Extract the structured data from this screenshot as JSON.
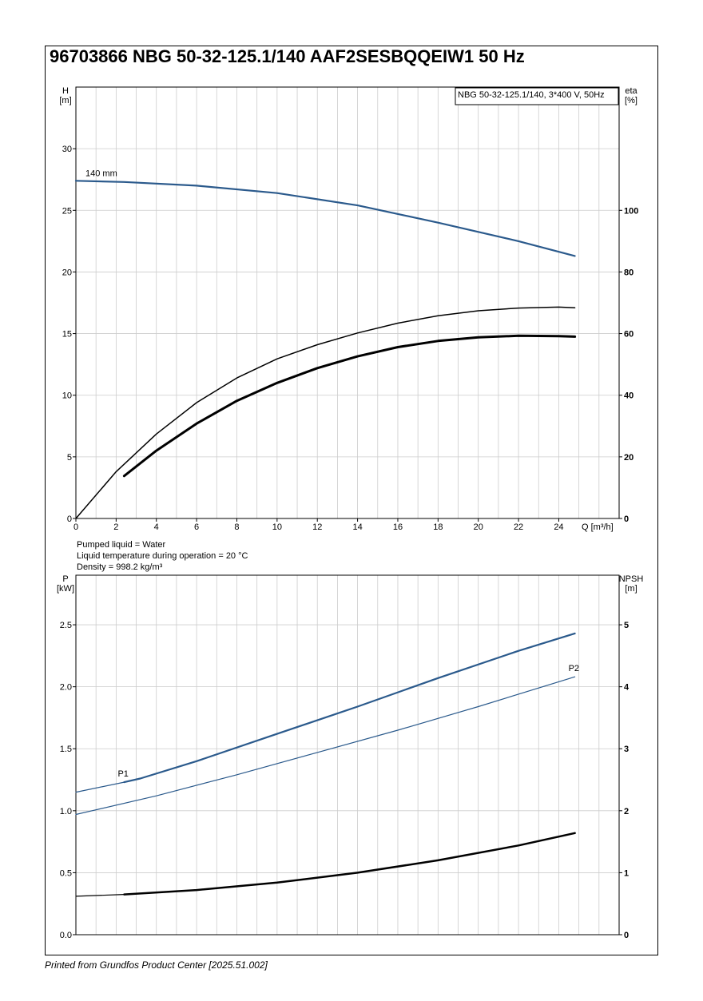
{
  "title": "96703866 NBG 50-32-125.1/140 AAF2SESBQQEIW1 50 Hz",
  "footer": "Printed from Grundfos Product Center [2025.51.002]",
  "info": [
    "Pumped liquid = Water",
    "Liquid temperature during operation = 20 °C",
    "Density = 998.2 kg/m³"
  ],
  "colors": {
    "blue": "#2b5a8c",
    "black": "#000000",
    "grid": "#cccccc"
  },
  "chart_data": [
    {
      "type": "line",
      "legend_box": "NBG 50-32-125.1/140, 3*400 V, 50Hz",
      "legend_placement": "top-right",
      "grid": true,
      "xlabel": "Q [m³/h]",
      "ylabel_left": [
        "H",
        "[m]"
      ],
      "ylabel_right": [
        "eta",
        "[%]"
      ],
      "xlim": [
        0,
        27
      ],
      "ylim_left": [
        0,
        35
      ],
      "ylim_right": [
        0,
        140
      ],
      "x_ticks": [
        "0",
        "2",
        "4",
        "6",
        "8",
        "10",
        "12",
        "14",
        "16",
        "18",
        "20",
        "22",
        "24"
      ],
      "y_left_ticks": [
        "0",
        "5",
        "10",
        "15",
        "20",
        "25",
        "30"
      ],
      "y_right_ticks": [
        "0",
        "20",
        "40",
        "60",
        "80",
        "100"
      ],
      "series": [
        {
          "name": "140 mm",
          "axis": "left",
          "color": "#2b5a8c",
          "width": 2.2,
          "x": [
            0,
            2.4,
            6,
            10,
            14,
            18,
            22,
            24.8
          ],
          "y": [
            27.4,
            27.3,
            27.0,
            26.4,
            25.4,
            24.0,
            22.5,
            21.3
          ]
        },
        {
          "axis": "right",
          "color": "#000000",
          "width": 1.5,
          "x": [
            0,
            2,
            4,
            6,
            8,
            10,
            12,
            14,
            16,
            18,
            20,
            22,
            24,
            24.8
          ],
          "y": [
            0,
            15.2,
            27.4,
            37.6,
            45.6,
            51.8,
            56.4,
            60.2,
            63.4,
            65.8,
            67.4,
            68.3,
            68.6,
            68.4
          ]
        },
        {
          "axis": "right",
          "color": "#000000",
          "width": 3,
          "x": [
            2.4,
            4,
            6,
            8,
            10,
            12,
            14,
            16,
            18,
            20,
            22,
            24,
            24.8
          ],
          "y": [
            13.8,
            22.0,
            30.8,
            38.2,
            44.0,
            48.8,
            52.6,
            55.6,
            57.6,
            58.8,
            59.3,
            59.2,
            59.0
          ]
        }
      ]
    },
    {
      "type": "line",
      "grid": true,
      "xlim": [
        0,
        27
      ],
      "ylabel_left": [
        "P",
        "[kW]"
      ],
      "ylabel_right": [
        "NPSH",
        "[m]"
      ],
      "ylim_left": [
        0,
        2.9
      ],
      "ylim_right": [
        0,
        5.8
      ],
      "y_left_ticks": [
        "0.0",
        "0.5",
        "1.0",
        "1.5",
        "2.0",
        "2.5"
      ],
      "y_right_ticks": [
        "0",
        "1",
        "2",
        "3",
        "4",
        "5"
      ],
      "series": [
        {
          "name": "P1",
          "axis": "left",
          "color": "#2b5a8c",
          "width": 1.2,
          "x": [
            0,
            2.4
          ],
          "y": [
            1.15,
            1.23
          ]
        },
        {
          "name": "P1",
          "axis": "left",
          "color": "#2b5a8c",
          "width": 2.2,
          "x": [
            2.4,
            3.2,
            6,
            10,
            14,
            18,
            22,
            24.8
          ],
          "y": [
            1.23,
            1.26,
            1.4,
            1.62,
            1.84,
            2.07,
            2.29,
            2.43
          ]
        },
        {
          "name": "P2",
          "axis": "left",
          "color": "#2b5a8c",
          "width": 1.2,
          "x": [
            0,
            4,
            8,
            12,
            16,
            20,
            24,
            24.8
          ],
          "y": [
            0.97,
            1.12,
            1.29,
            1.47,
            1.65,
            1.84,
            2.04,
            2.08
          ]
        },
        {
          "axis": "right",
          "color": "#000000",
          "width": 1.2,
          "x": [
            0,
            2.4
          ],
          "y": [
            0.62,
            0.65
          ]
        },
        {
          "axis": "right",
          "color": "#000000",
          "width": 2.5,
          "x": [
            2.4,
            6,
            10,
            14,
            18,
            22,
            24.8
          ],
          "y": [
            0.65,
            0.72,
            0.84,
            1.0,
            1.2,
            1.44,
            1.64
          ]
        }
      ]
    }
  ]
}
